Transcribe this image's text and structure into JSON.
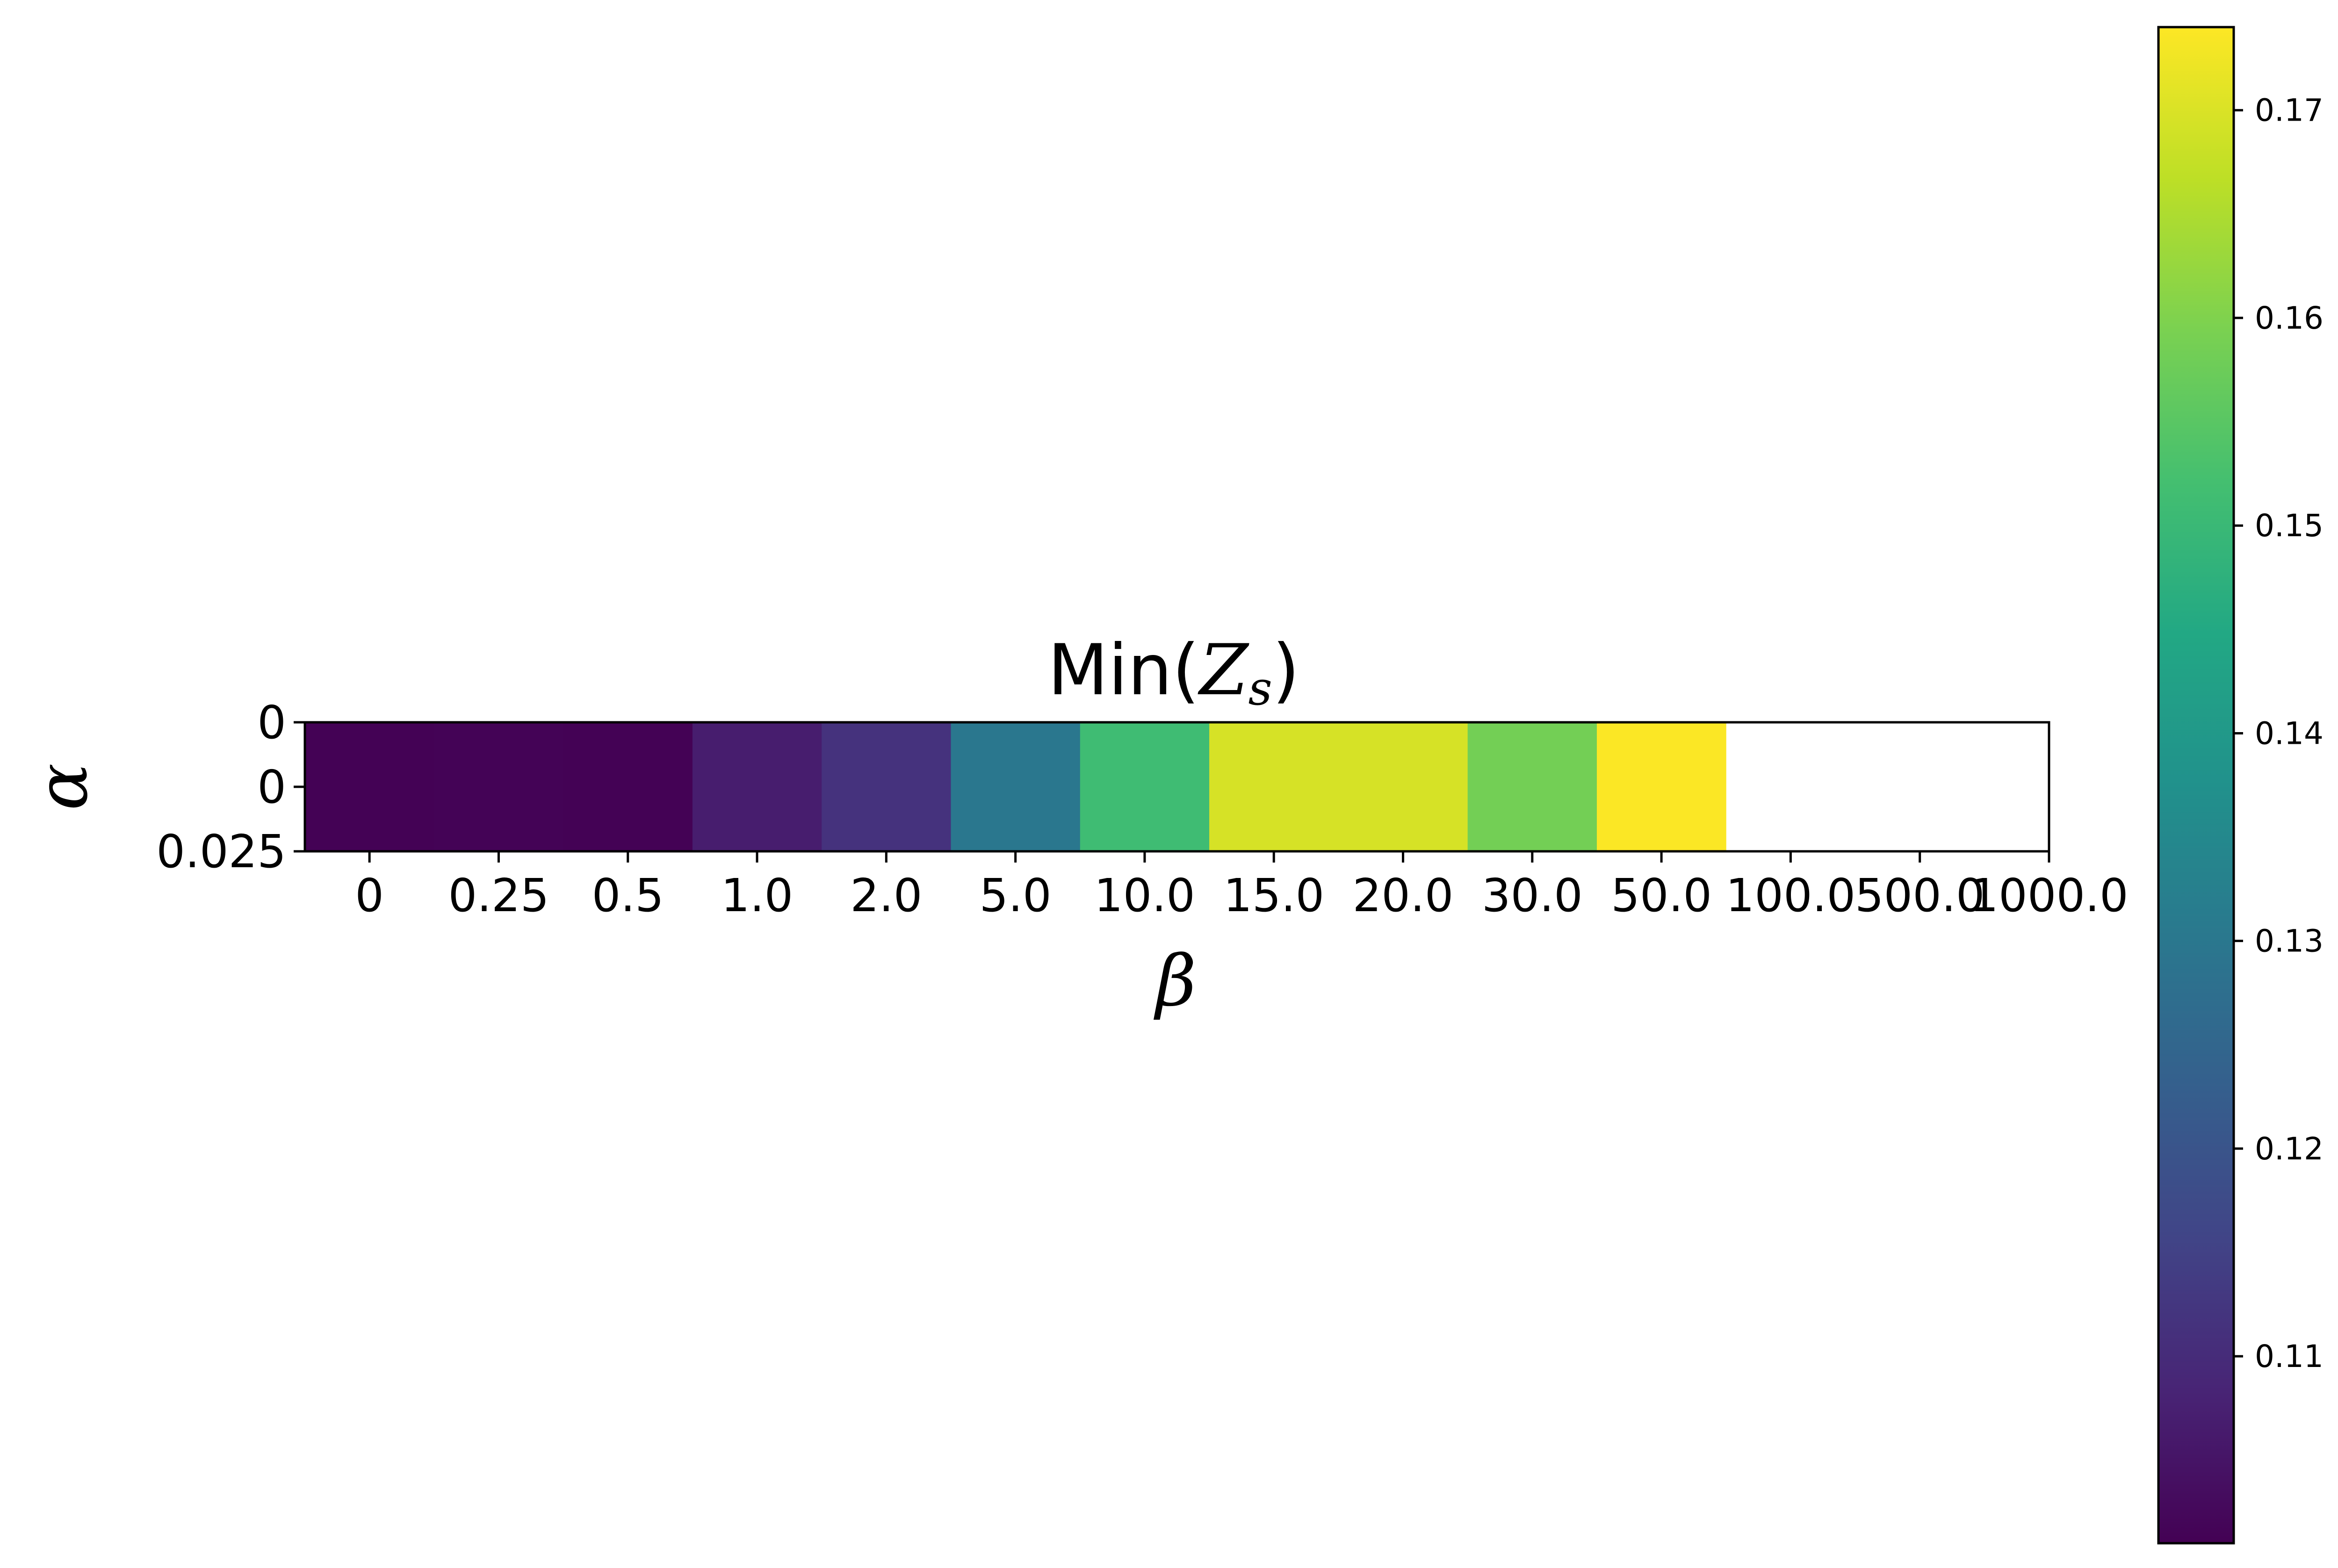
{
  "chart_data": {
    "type": "heatmap",
    "title": "Min(",
    "title_symbol": "Z",
    "title_subscript": "s",
    "title_suffix": ")",
    "xlabel": "β",
    "ylabel": "α",
    "x_categories": [
      "0",
      "0.25",
      "0.5",
      "1.0",
      "2.0",
      "5.0",
      "10.0",
      "15.0",
      "20.0",
      "30.0",
      "50.0",
      "100.0",
      "500.0",
      "1000.0"
    ],
    "y_tick_labels": [
      "0",
      "0",
      "0.025"
    ],
    "values": [
      0.1012,
      0.1014,
      0.1012,
      0.1068,
      0.1115,
      0.13,
      0.151,
      0.1695,
      0.1695,
      0.1585,
      0.1738,
      null,
      null,
      null
    ],
    "colormap": "viridis",
    "colorbar": {
      "min": 0.101,
      "max": 0.174,
      "ticks": [
        0.11,
        0.12,
        0.13,
        0.14,
        0.15,
        0.16,
        0.17
      ],
      "tick_labels": [
        "0.11",
        "0.12",
        "0.13",
        "0.14",
        "0.15",
        "0.16",
        "0.17"
      ]
    }
  }
}
